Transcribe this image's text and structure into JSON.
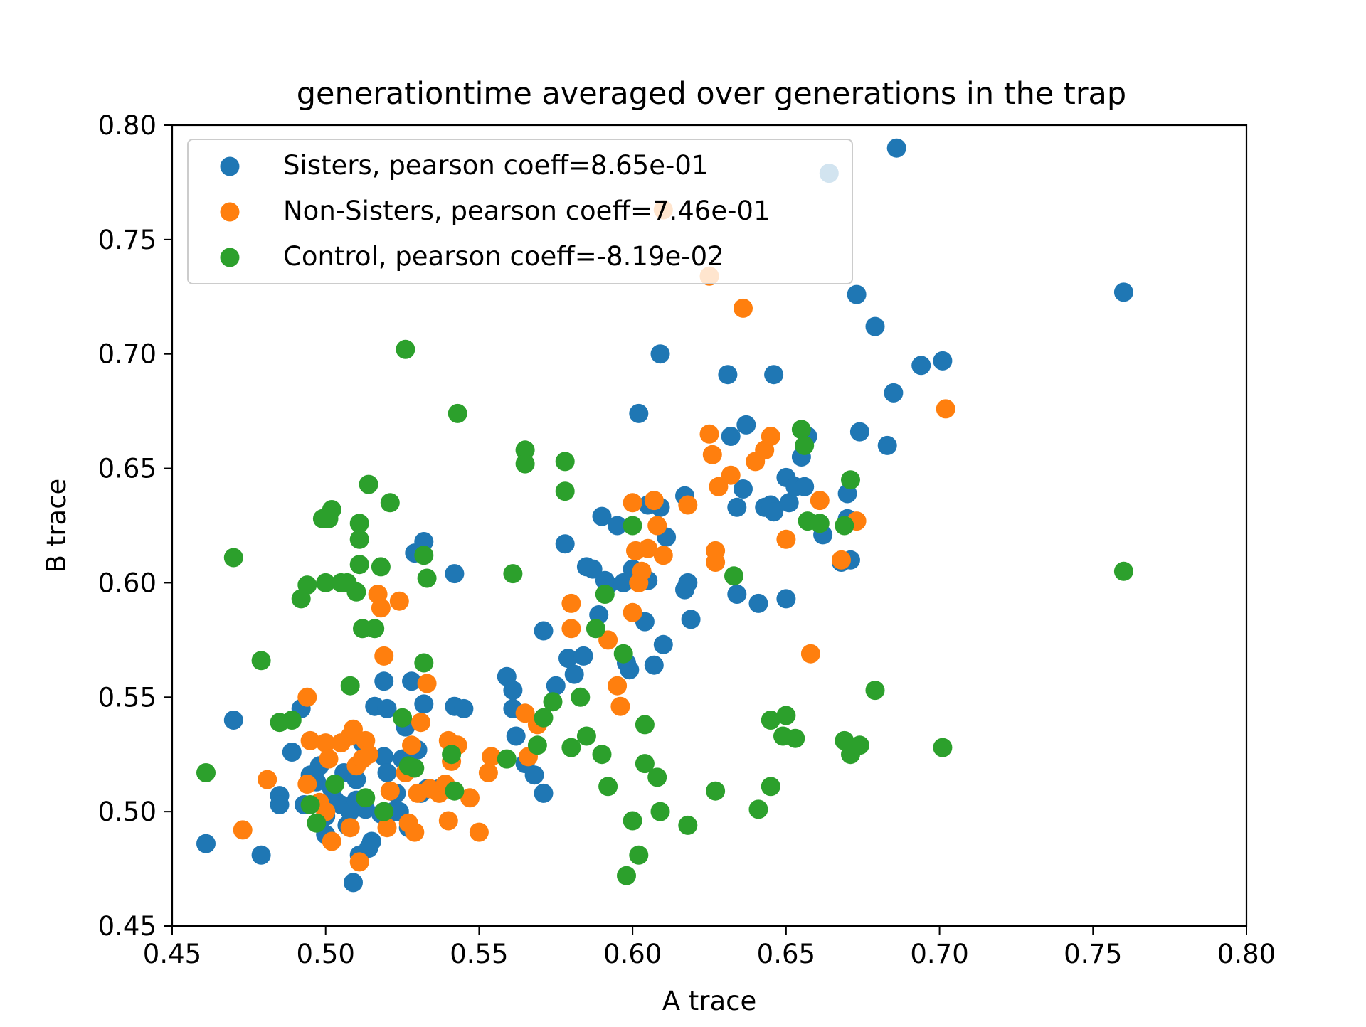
{
  "chart_data": {
    "type": "scatter",
    "title": "generationtime averaged over generations in the trap",
    "xlabel": "A trace",
    "ylabel": "B trace",
    "xlim": [
      0.45,
      0.8
    ],
    "ylim": [
      0.45,
      0.8
    ],
    "xticks": [
      "0.45",
      "0.50",
      "0.55",
      "0.60",
      "0.65",
      "0.70",
      "0.75",
      "0.80"
    ],
    "yticks": [
      "0.45",
      "0.50",
      "0.55",
      "0.60",
      "0.65",
      "0.70",
      "0.75",
      "0.80"
    ],
    "grid": false,
    "legend_position": "top-left",
    "series": [
      {
        "name": "Sisters, pearson coeff=8.65e-01",
        "color": "#1f77b4",
        "points": [
          [
            0.461,
            0.486
          ],
          [
            0.47,
            0.54
          ],
          [
            0.479,
            0.481
          ],
          [
            0.485,
            0.507
          ],
          [
            0.485,
            0.503
          ],
          [
            0.489,
            0.526
          ],
          [
            0.492,
            0.545
          ],
          [
            0.493,
            0.503
          ],
          [
            0.495,
            0.516
          ],
          [
            0.497,
            0.513
          ],
          [
            0.498,
            0.52
          ],
          [
            0.5,
            0.498
          ],
          [
            0.5,
            0.49
          ],
          [
            0.502,
            0.51
          ],
          [
            0.503,
            0.505
          ],
          [
            0.505,
            0.503
          ],
          [
            0.506,
            0.517
          ],
          [
            0.507,
            0.494
          ],
          [
            0.508,
            0.5
          ],
          [
            0.509,
            0.469
          ],
          [
            0.51,
            0.514
          ],
          [
            0.51,
            0.505
          ],
          [
            0.511,
            0.481
          ],
          [
            0.512,
            0.53
          ],
          [
            0.513,
            0.501
          ],
          [
            0.514,
            0.484
          ],
          [
            0.515,
            0.487
          ],
          [
            0.516,
            0.546
          ],
          [
            0.518,
            0.499
          ],
          [
            0.519,
            0.524
          ],
          [
            0.519,
            0.557
          ],
          [
            0.52,
            0.545
          ],
          [
            0.52,
            0.517
          ],
          [
            0.522,
            0.5
          ],
          [
            0.523,
            0.508
          ],
          [
            0.524,
            0.5
          ],
          [
            0.525,
            0.523
          ],
          [
            0.526,
            0.537
          ],
          [
            0.527,
            0.493
          ],
          [
            0.528,
            0.557
          ],
          [
            0.529,
            0.613
          ],
          [
            0.53,
            0.527
          ],
          [
            0.531,
            0.508
          ],
          [
            0.532,
            0.547
          ],
          [
            0.532,
            0.618
          ],
          [
            0.533,
            0.51
          ],
          [
            0.537,
            0.51
          ],
          [
            0.542,
            0.604
          ],
          [
            0.542,
            0.546
          ],
          [
            0.545,
            0.545
          ],
          [
            0.559,
            0.559
          ],
          [
            0.561,
            0.553
          ],
          [
            0.561,
            0.545
          ],
          [
            0.562,
            0.533
          ],
          [
            0.565,
            0.521
          ],
          [
            0.568,
            0.516
          ],
          [
            0.571,
            0.579
          ],
          [
            0.571,
            0.508
          ],
          [
            0.575,
            0.555
          ],
          [
            0.578,
            0.617
          ],
          [
            0.579,
            0.567
          ],
          [
            0.581,
            0.56
          ],
          [
            0.584,
            0.568
          ],
          [
            0.585,
            0.607
          ],
          [
            0.587,
            0.606
          ],
          [
            0.589,
            0.586
          ],
          [
            0.59,
            0.629
          ],
          [
            0.591,
            0.601
          ],
          [
            0.592,
            0.599
          ],
          [
            0.595,
            0.625
          ],
          [
            0.597,
            0.6
          ],
          [
            0.598,
            0.565
          ],
          [
            0.599,
            0.562
          ],
          [
            0.6,
            0.606
          ],
          [
            0.602,
            0.674
          ],
          [
            0.604,
            0.583
          ],
          [
            0.605,
            0.601
          ],
          [
            0.605,
            0.634
          ],
          [
            0.607,
            0.564
          ],
          [
            0.609,
            0.7
          ],
          [
            0.609,
            0.633
          ],
          [
            0.61,
            0.573
          ],
          [
            0.611,
            0.62
          ],
          [
            0.617,
            0.638
          ],
          [
            0.617,
            0.597
          ],
          [
            0.618,
            0.6
          ],
          [
            0.619,
            0.584
          ],
          [
            0.631,
            0.691
          ],
          [
            0.632,
            0.664
          ],
          [
            0.634,
            0.633
          ],
          [
            0.634,
            0.595
          ],
          [
            0.636,
            0.641
          ],
          [
            0.637,
            0.669
          ],
          [
            0.641,
            0.591
          ],
          [
            0.643,
            0.633
          ],
          [
            0.645,
            0.634
          ],
          [
            0.646,
            0.631
          ],
          [
            0.646,
            0.691
          ],
          [
            0.65,
            0.646
          ],
          [
            0.65,
            0.593
          ],
          [
            0.651,
            0.635
          ],
          [
            0.653,
            0.642
          ],
          [
            0.655,
            0.655
          ],
          [
            0.656,
            0.642
          ],
          [
            0.657,
            0.664
          ],
          [
            0.662,
            0.621
          ],
          [
            0.664,
            0.779
          ],
          [
            0.668,
            0.609
          ],
          [
            0.67,
            0.628
          ],
          [
            0.67,
            0.639
          ],
          [
            0.671,
            0.61
          ],
          [
            0.673,
            0.726
          ],
          [
            0.674,
            0.666
          ],
          [
            0.679,
            0.712
          ],
          [
            0.683,
            0.66
          ],
          [
            0.685,
            0.683
          ],
          [
            0.686,
            0.79
          ],
          [
            0.694,
            0.695
          ],
          [
            0.701,
            0.697
          ],
          [
            0.76,
            0.727
          ]
        ]
      },
      {
        "name": "Non-Sisters, pearson coeff=7.46e-01",
        "color": "#ff7f0e",
        "points": [
          [
            0.473,
            0.492
          ],
          [
            0.481,
            0.514
          ],
          [
            0.494,
            0.55
          ],
          [
            0.494,
            0.512
          ],
          [
            0.495,
            0.531
          ],
          [
            0.498,
            0.504
          ],
          [
            0.5,
            0.5
          ],
          [
            0.5,
            0.53
          ],
          [
            0.501,
            0.523
          ],
          [
            0.502,
            0.487
          ],
          [
            0.505,
            0.53
          ],
          [
            0.508,
            0.533
          ],
          [
            0.508,
            0.493
          ],
          [
            0.509,
            0.536
          ],
          [
            0.51,
            0.52
          ],
          [
            0.511,
            0.478
          ],
          [
            0.512,
            0.523
          ],
          [
            0.513,
            0.531
          ],
          [
            0.514,
            0.525
          ],
          [
            0.517,
            0.595
          ],
          [
            0.518,
            0.589
          ],
          [
            0.519,
            0.568
          ],
          [
            0.52,
            0.493
          ],
          [
            0.521,
            0.509
          ],
          [
            0.524,
            0.592
          ],
          [
            0.526,
            0.517
          ],
          [
            0.527,
            0.495
          ],
          [
            0.528,
            0.529
          ],
          [
            0.529,
            0.491
          ],
          [
            0.53,
            0.508
          ],
          [
            0.531,
            0.539
          ],
          [
            0.533,
            0.556
          ],
          [
            0.534,
            0.51
          ],
          [
            0.537,
            0.508
          ],
          [
            0.539,
            0.512
          ],
          [
            0.54,
            0.496
          ],
          [
            0.54,
            0.531
          ],
          [
            0.541,
            0.522
          ],
          [
            0.543,
            0.529
          ],
          [
            0.547,
            0.506
          ],
          [
            0.55,
            0.491
          ],
          [
            0.553,
            0.517
          ],
          [
            0.554,
            0.524
          ],
          [
            0.565,
            0.543
          ],
          [
            0.566,
            0.524
          ],
          [
            0.569,
            0.538
          ],
          [
            0.58,
            0.591
          ],
          [
            0.58,
            0.58
          ],
          [
            0.592,
            0.575
          ],
          [
            0.595,
            0.555
          ],
          [
            0.596,
            0.546
          ],
          [
            0.6,
            0.587
          ],
          [
            0.6,
            0.635
          ],
          [
            0.601,
            0.614
          ],
          [
            0.602,
            0.6
          ],
          [
            0.603,
            0.605
          ],
          [
            0.605,
            0.615
          ],
          [
            0.607,
            0.636
          ],
          [
            0.608,
            0.625
          ],
          [
            0.61,
            0.612
          ],
          [
            0.61,
            0.763
          ],
          [
            0.618,
            0.634
          ],
          [
            0.625,
            0.665
          ],
          [
            0.625,
            0.734
          ],
          [
            0.626,
            0.656
          ],
          [
            0.627,
            0.614
          ],
          [
            0.627,
            0.609
          ],
          [
            0.628,
            0.642
          ],
          [
            0.632,
            0.647
          ],
          [
            0.636,
            0.72
          ],
          [
            0.64,
            0.653
          ],
          [
            0.643,
            0.658
          ],
          [
            0.645,
            0.664
          ],
          [
            0.65,
            0.619
          ],
          [
            0.658,
            0.569
          ],
          [
            0.661,
            0.636
          ],
          [
            0.668,
            0.61
          ],
          [
            0.673,
            0.627
          ],
          [
            0.702,
            0.676
          ]
        ]
      },
      {
        "name": "Control, pearson coeff=-8.19e-02",
        "color": "#2ca02c",
        "points": [
          [
            0.461,
            0.517
          ],
          [
            0.47,
            0.611
          ],
          [
            0.479,
            0.566
          ],
          [
            0.485,
            0.539
          ],
          [
            0.489,
            0.54
          ],
          [
            0.492,
            0.593
          ],
          [
            0.494,
            0.599
          ],
          [
            0.495,
            0.503
          ],
          [
            0.497,
            0.495
          ],
          [
            0.499,
            0.628
          ],
          [
            0.5,
            0.6
          ],
          [
            0.501,
            0.628
          ],
          [
            0.502,
            0.632
          ],
          [
            0.503,
            0.512
          ],
          [
            0.505,
            0.6
          ],
          [
            0.507,
            0.6
          ],
          [
            0.508,
            0.555
          ],
          [
            0.51,
            0.596
          ],
          [
            0.511,
            0.626
          ],
          [
            0.511,
            0.608
          ],
          [
            0.511,
            0.619
          ],
          [
            0.512,
            0.58
          ],
          [
            0.513,
            0.506
          ],
          [
            0.514,
            0.643
          ],
          [
            0.516,
            0.58
          ],
          [
            0.518,
            0.607
          ],
          [
            0.519,
            0.5
          ],
          [
            0.521,
            0.635
          ],
          [
            0.525,
            0.541
          ],
          [
            0.526,
            0.702
          ],
          [
            0.527,
            0.52
          ],
          [
            0.529,
            0.519
          ],
          [
            0.532,
            0.612
          ],
          [
            0.532,
            0.565
          ],
          [
            0.533,
            0.602
          ],
          [
            0.541,
            0.525
          ],
          [
            0.542,
            0.509
          ],
          [
            0.543,
            0.674
          ],
          [
            0.559,
            0.523
          ],
          [
            0.561,
            0.604
          ],
          [
            0.565,
            0.658
          ],
          [
            0.565,
            0.652
          ],
          [
            0.569,
            0.529
          ],
          [
            0.571,
            0.541
          ],
          [
            0.574,
            0.548
          ],
          [
            0.578,
            0.653
          ],
          [
            0.578,
            0.64
          ],
          [
            0.58,
            0.528
          ],
          [
            0.583,
            0.55
          ],
          [
            0.585,
            0.533
          ],
          [
            0.588,
            0.58
          ],
          [
            0.59,
            0.525
          ],
          [
            0.591,
            0.595
          ],
          [
            0.592,
            0.511
          ],
          [
            0.597,
            0.569
          ],
          [
            0.598,
            0.472
          ],
          [
            0.6,
            0.496
          ],
          [
            0.6,
            0.625
          ],
          [
            0.602,
            0.481
          ],
          [
            0.604,
            0.538
          ],
          [
            0.604,
            0.521
          ],
          [
            0.608,
            0.515
          ],
          [
            0.609,
            0.5
          ],
          [
            0.618,
            0.494
          ],
          [
            0.627,
            0.509
          ],
          [
            0.633,
            0.603
          ],
          [
            0.641,
            0.501
          ],
          [
            0.645,
            0.54
          ],
          [
            0.645,
            0.511
          ],
          [
            0.649,
            0.533
          ],
          [
            0.65,
            0.542
          ],
          [
            0.653,
            0.532
          ],
          [
            0.655,
            0.667
          ],
          [
            0.656,
            0.66
          ],
          [
            0.657,
            0.627
          ],
          [
            0.661,
            0.626
          ],
          [
            0.669,
            0.625
          ],
          [
            0.669,
            0.531
          ],
          [
            0.671,
            0.525
          ],
          [
            0.671,
            0.645
          ],
          [
            0.674,
            0.529
          ],
          [
            0.679,
            0.553
          ],
          [
            0.701,
            0.528
          ],
          [
            0.76,
            0.605
          ]
        ]
      }
    ]
  }
}
